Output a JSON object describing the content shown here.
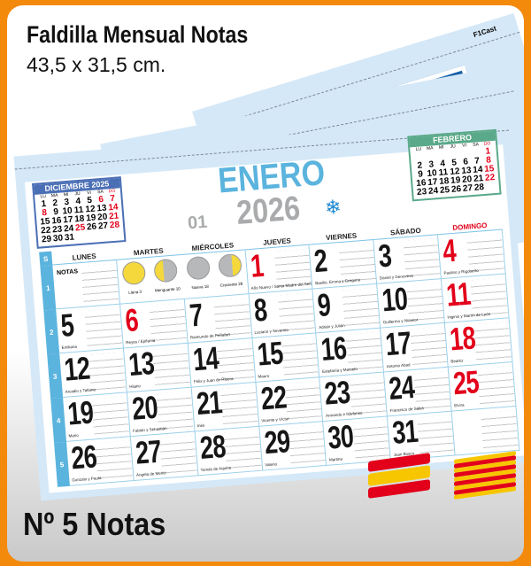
{
  "header": {
    "title": "Faldilla Mensual Notas",
    "size": "43,5 x 31,5 cm."
  },
  "footer": {
    "label": "Nº 5 Notas"
  },
  "back_sheet": {
    "code": "F1Cast"
  },
  "colors": {
    "frame": "#f48a0c",
    "month": "#5bb4de",
    "red": "#e2001a",
    "december": "#4a6fb5",
    "february": "#5aa98a",
    "sheet": "#d5e8f7"
  },
  "calendar": {
    "month": "ENERO",
    "year": "2026",
    "month_number": "01",
    "icon": "snowflake-icon",
    "week_label": "S",
    "notes_label": "NOTAS",
    "weekdays": [
      "LUNES",
      "MARTES",
      "MIÉRCOLES",
      "JUEVES",
      "VIERNES",
      "SÁBADO",
      "DOMINGO"
    ],
    "weeks": [
      "1",
      "2",
      "3",
      "4",
      "5"
    ],
    "moons": [
      {
        "phase": "full",
        "label": "Llena 3"
      },
      {
        "phase": "wane",
        "label": "Menguante 10"
      },
      {
        "phase": "new",
        "label": "Nueva 18"
      },
      {
        "phase": "wax",
        "label": "Creciente 26"
      }
    ],
    "days": [
      {
        "d": "1",
        "saint": "Año Nuevo / Santa Madre del Señor",
        "red": true
      },
      {
        "d": "2",
        "saint": "Basilio, Emma y Gregorio"
      },
      {
        "d": "3",
        "saint": "Daniel y Genoveva"
      },
      {
        "d": "4",
        "saint": "Paulino y Rigoberto",
        "red": true
      },
      {
        "d": "5",
        "saint": "Emiliana"
      },
      {
        "d": "6",
        "saint": "Reyes / Epifanía",
        "red": true
      },
      {
        "d": "7",
        "saint": "Raimundo de Peñafort"
      },
      {
        "d": "8",
        "saint": "Luciano y Severino"
      },
      {
        "d": "9",
        "saint": "Adrián y Julián"
      },
      {
        "d": "10",
        "saint": "Guillermo y Nicanor"
      },
      {
        "d": "11",
        "saint": "Higinio y Martín de León",
        "red": true
      },
      {
        "d": "12",
        "saint": "Arcadio y Tatiana"
      },
      {
        "d": "13",
        "saint": "Hilario"
      },
      {
        "d": "14",
        "saint": "Félix y Juan de Ribera"
      },
      {
        "d": "15",
        "saint": "Mauro"
      },
      {
        "d": "16",
        "saint": "Estefanía y Marcelo"
      },
      {
        "d": "17",
        "saint": "Antonio Abad"
      },
      {
        "d": "18",
        "saint": "Beatriz",
        "red": true
      },
      {
        "d": "19",
        "saint": "Mario"
      },
      {
        "d": "20",
        "saint": "Fabián y Sebastián"
      },
      {
        "d": "21",
        "saint": "Inés"
      },
      {
        "d": "22",
        "saint": "Vicente y Víctor"
      },
      {
        "d": "23",
        "saint": "Armando e Ildefonso"
      },
      {
        "d": "24",
        "saint": "Francisco de Sales"
      },
      {
        "d": "25",
        "saint": "Elvira",
        "red": true
      },
      {
        "d": "26",
        "saint": "Gonzalo y Paula"
      },
      {
        "d": "27",
        "saint": "Ángela de Merici"
      },
      {
        "d": "28",
        "saint": "Tomás de Aquino"
      },
      {
        "d": "29",
        "saint": "Valerio"
      },
      {
        "d": "30",
        "saint": "Martina"
      },
      {
        "d": "31",
        "saint": "Juan Bosco"
      }
    ]
  },
  "mini_calendars": [
    {
      "name": "DICIEMBRE 2025",
      "cls": "dic",
      "offset": 0,
      "days": 31,
      "weekdays": [
        "LU",
        "MA",
        "MI",
        "JU",
        "VI",
        "SA",
        "DO"
      ],
      "red": [
        "6",
        "7",
        "8",
        "14",
        "21",
        "25",
        "28"
      ]
    },
    {
      "name": "FEBRERO",
      "cls": "feb",
      "offset": 6,
      "days": 28,
      "weekdays": [
        "LU",
        "MA",
        "MI",
        "JU",
        "VI",
        "SA",
        "DO"
      ],
      "red": [
        "1",
        "8",
        "15",
        "22"
      ]
    }
  ]
}
